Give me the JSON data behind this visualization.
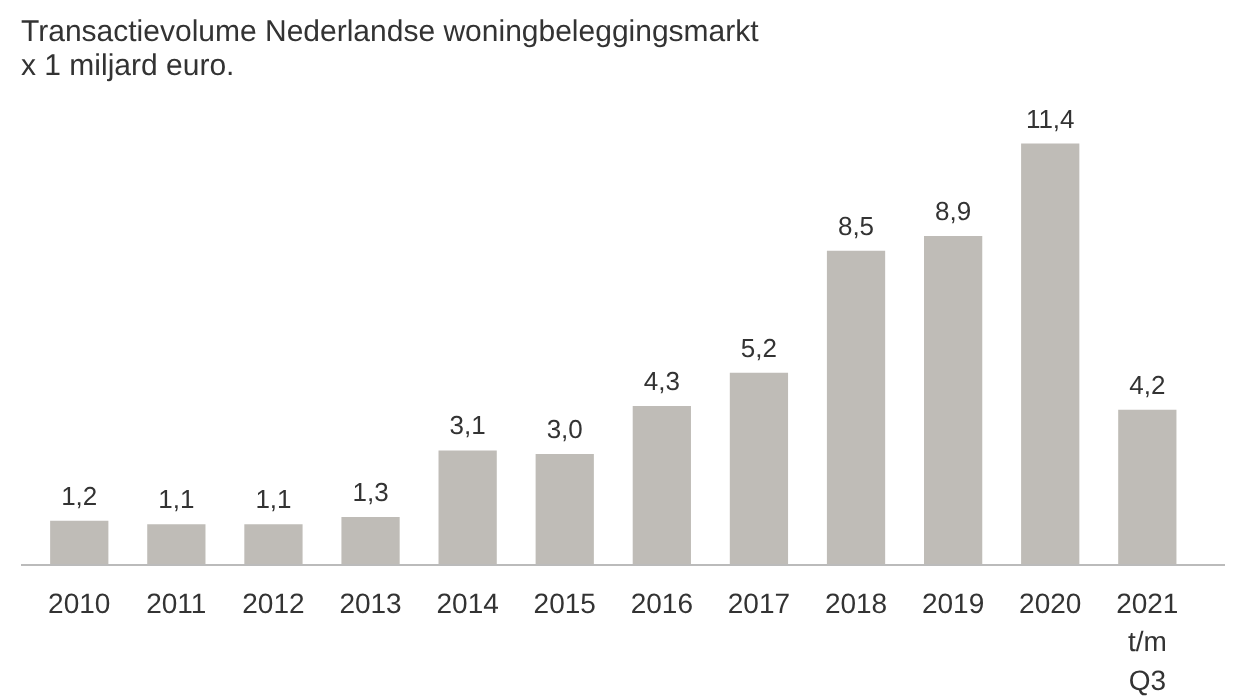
{
  "chart_data": {
    "type": "bar",
    "title": "Transactievolume Nederlandse woningbeleggingsmarkt\nx 1 miljard euro.",
    "categories": [
      "2010",
      "2011",
      "2012",
      "2013",
      "2014",
      "2015",
      "2016",
      "2017",
      "2018",
      "2019",
      "2020",
      "2021\nt/m\nQ3"
    ],
    "values": [
      1.2,
      1.1,
      1.1,
      1.3,
      3.1,
      3.0,
      4.3,
      5.2,
      8.5,
      8.9,
      11.4,
      4.2
    ],
    "value_labels": [
      "1,2",
      "1,1",
      "1,1",
      "1,3",
      "3,1",
      "3,0",
      "4,3",
      "5,2",
      "8,5",
      "8,9",
      "11,4",
      "4,2"
    ],
    "color": "#bfbcb7"
  }
}
